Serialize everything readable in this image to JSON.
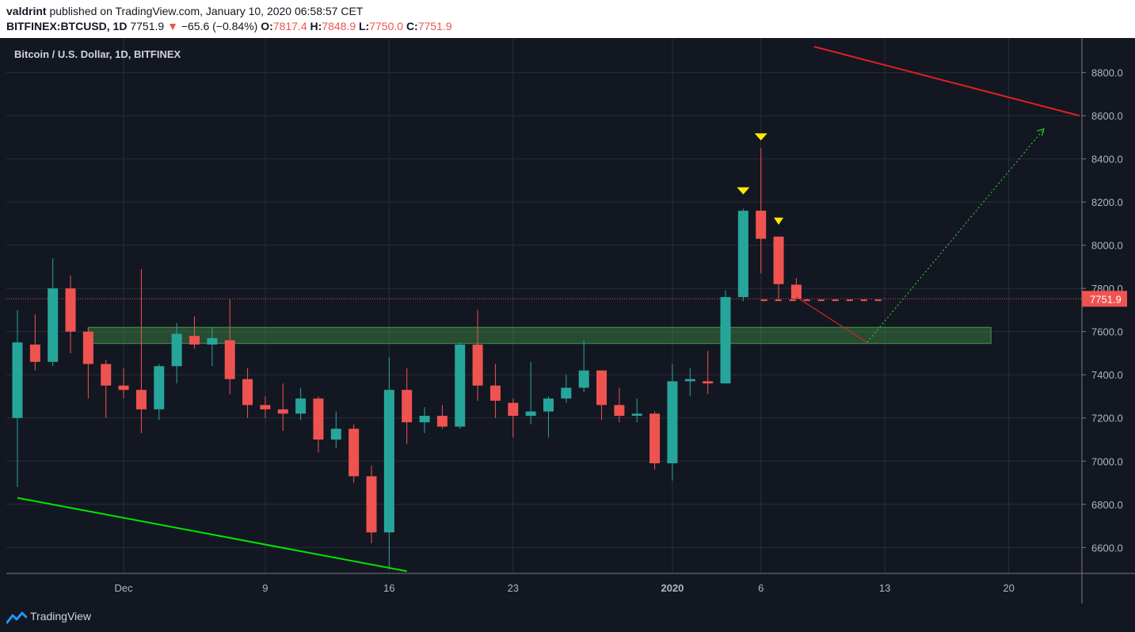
{
  "header": {
    "author": "valdrint",
    "published_text": " published on TradingView.com, January 10, 2020 06:58:57 CET",
    "symbol": "BITFINEX:BTCUSD, 1D",
    "last": "7751.9",
    "change_arrow": "▼",
    "change": "−65.6 (−0.84%)",
    "o_label": "O:",
    "o_value": "7817.4",
    "h_label": "H:",
    "h_value": "7848.9",
    "l_label": "L:",
    "l_value": "7750.0",
    "c_label": "C:",
    "c_value": "7751.9"
  },
  "footer": {
    "brand": "TradingView",
    "logo_icon": "tradingview-logo-icon"
  },
  "colors": {
    "background": "#131722",
    "grid": "#2a2e39",
    "up": "#26a69a",
    "down": "#ef5350",
    "text": "#b2b5be",
    "zone": "#4caf50",
    "trend_green": "#00e600",
    "trend_red": "#e02020",
    "marker": "#ffeb00"
  },
  "chart_data": {
    "type": "candlestick",
    "title": "Bitcoin / U.S. Dollar, 1D, BITFINEX",
    "y_range": [
      6480,
      8960
    ],
    "y_ticks": [
      6600,
      6800,
      7000,
      7200,
      7400,
      7600,
      7800,
      8000,
      8200,
      8400,
      8600,
      8800
    ],
    "y_tick_labels": [
      "6600.0",
      "6800.0",
      "7000.0",
      "7200.0",
      "7400.0",
      "7600.0",
      "7800.0",
      "8000.0",
      "8200.0",
      "8400.0",
      "8600.0",
      "8800.0"
    ],
    "x_range": [
      "2019-11-25",
      "2020-01-24"
    ],
    "x_ticks": [
      {
        "date": "2019-12-01",
        "label": "Dec"
      },
      {
        "date": "2019-12-09",
        "label": "9"
      },
      {
        "date": "2019-12-16",
        "label": "16"
      },
      {
        "date": "2019-12-23",
        "label": "23"
      },
      {
        "date": "2020-01-01",
        "label": "2020"
      },
      {
        "date": "2020-01-06",
        "label": "6"
      },
      {
        "date": "2020-01-13",
        "label": "13"
      },
      {
        "date": "2020-01-20",
        "label": "20"
      }
    ],
    "candles": [
      {
        "date": "2019-11-25",
        "o": 7200,
        "h": 7700,
        "l": 6880,
        "c": 7550
      },
      {
        "date": "2019-11-26",
        "o": 7540,
        "h": 7680,
        "l": 7420,
        "c": 7460
      },
      {
        "date": "2019-11-27",
        "o": 7460,
        "h": 7940,
        "l": 7440,
        "c": 7800
      },
      {
        "date": "2019-11-28",
        "o": 7800,
        "h": 7860,
        "l": 7500,
        "c": 7600
      },
      {
        "date": "2019-11-29",
        "o": 7600,
        "h": 7620,
        "l": 7290,
        "c": 7450
      },
      {
        "date": "2019-11-30",
        "o": 7450,
        "h": 7470,
        "l": 7200,
        "c": 7350
      },
      {
        "date": "2019-12-01",
        "o": 7350,
        "h": 7430,
        "l": 7290,
        "c": 7330
      },
      {
        "date": "2019-12-02",
        "o": 7330,
        "h": 7890,
        "l": 7130,
        "c": 7240
      },
      {
        "date": "2019-12-03",
        "o": 7240,
        "h": 7450,
        "l": 7190,
        "c": 7440
      },
      {
        "date": "2019-12-04",
        "o": 7440,
        "h": 7640,
        "l": 7360,
        "c": 7590
      },
      {
        "date": "2019-12-05",
        "o": 7580,
        "h": 7670,
        "l": 7520,
        "c": 7540
      },
      {
        "date": "2019-12-06",
        "o": 7540,
        "h": 7620,
        "l": 7440,
        "c": 7570
      },
      {
        "date": "2019-12-07",
        "o": 7560,
        "h": 7750,
        "l": 7310,
        "c": 7380
      },
      {
        "date": "2019-12-08",
        "o": 7380,
        "h": 7430,
        "l": 7200,
        "c": 7260
      },
      {
        "date": "2019-12-09",
        "o": 7260,
        "h": 7300,
        "l": 7200,
        "c": 7240
      },
      {
        "date": "2019-12-10",
        "o": 7240,
        "h": 7360,
        "l": 7140,
        "c": 7220
      },
      {
        "date": "2019-12-11",
        "o": 7220,
        "h": 7340,
        "l": 7190,
        "c": 7290
      },
      {
        "date": "2019-12-12",
        "o": 7290,
        "h": 7300,
        "l": 7040,
        "c": 7100
      },
      {
        "date": "2019-12-13",
        "o": 7100,
        "h": 7230,
        "l": 7060,
        "c": 7150
      },
      {
        "date": "2019-12-14",
        "o": 7150,
        "h": 7170,
        "l": 6900,
        "c": 6930
      },
      {
        "date": "2019-12-15",
        "o": 6930,
        "h": 6980,
        "l": 6620,
        "c": 6670
      },
      {
        "date": "2019-12-16",
        "o": 6670,
        "h": 7480,
        "l": 6500,
        "c": 7330
      },
      {
        "date": "2019-12-17",
        "o": 7330,
        "h": 7430,
        "l": 7080,
        "c": 7180
      },
      {
        "date": "2019-12-18",
        "o": 7180,
        "h": 7250,
        "l": 7130,
        "c": 7210
      },
      {
        "date": "2019-12-19",
        "o": 7210,
        "h": 7260,
        "l": 7150,
        "c": 7160
      },
      {
        "date": "2019-12-20",
        "o": 7160,
        "h": 7550,
        "l": 7150,
        "c": 7540
      },
      {
        "date": "2019-12-21",
        "o": 7540,
        "h": 7700,
        "l": 7280,
        "c": 7350
      },
      {
        "date": "2019-12-22",
        "o": 7350,
        "h": 7450,
        "l": 7200,
        "c": 7280
      },
      {
        "date": "2019-12-23",
        "o": 7270,
        "h": 7290,
        "l": 7110,
        "c": 7210
      },
      {
        "date": "2019-12-24",
        "o": 7210,
        "h": 7460,
        "l": 7170,
        "c": 7230
      },
      {
        "date": "2019-12-25",
        "o": 7230,
        "h": 7300,
        "l": 7110,
        "c": 7290
      },
      {
        "date": "2019-12-26",
        "o": 7290,
        "h": 7400,
        "l": 7270,
        "c": 7340
      },
      {
        "date": "2019-12-27",
        "o": 7340,
        "h": 7560,
        "l": 7320,
        "c": 7420
      },
      {
        "date": "2019-12-28",
        "o": 7420,
        "h": 7420,
        "l": 7190,
        "c": 7260
      },
      {
        "date": "2019-12-29",
        "o": 7260,
        "h": 7340,
        "l": 7180,
        "c": 7210
      },
      {
        "date": "2019-12-30",
        "o": 7210,
        "h": 7290,
        "l": 7180,
        "c": 7220
      },
      {
        "date": "2019-12-31",
        "o": 7220,
        "h": 7230,
        "l": 6960,
        "c": 6990
      },
      {
        "date": "2020-01-01",
        "o": 6990,
        "h": 7450,
        "l": 6910,
        "c": 7370
      },
      {
        "date": "2020-01-02",
        "o": 7370,
        "h": 7430,
        "l": 7300,
        "c": 7380
      },
      {
        "date": "2020-01-03",
        "o": 7370,
        "h": 7510,
        "l": 7310,
        "c": 7360
      },
      {
        "date": "2020-01-04",
        "o": 7360,
        "h": 7790,
        "l": 7360,
        "c": 7760
      },
      {
        "date": "2020-01-05",
        "o": 7760,
        "h": 8170,
        "l": 7740,
        "c": 8160
      },
      {
        "date": "2020-01-06",
        "o": 8160,
        "h": 8450,
        "l": 7870,
        "c": 8030
      },
      {
        "date": "2020-01-07",
        "o": 8040,
        "h": 8040,
        "l": 7750,
        "c": 7820
      },
      {
        "date": "2020-01-08",
        "o": 7817.4,
        "h": 7848.9,
        "l": 7750.0,
        "c": 7751.9
      }
    ],
    "current_price": 7751.9,
    "current_price_label": "7751.9",
    "support_zone": {
      "start": "2019-11-29",
      "end": "2020-01-19",
      "top": 7620,
      "bottom": 7545
    },
    "trendlines": [
      {
        "color": "green",
        "points": [
          [
            "2019-11-25",
            6830
          ],
          [
            "2019-12-17",
            6490
          ]
        ]
      },
      {
        "color": "red",
        "points": [
          [
            "2020-01-09",
            8920
          ],
          [
            "2020-01-24",
            8600
          ]
        ]
      }
    ],
    "projection": {
      "down_leg": [
        [
          "2020-01-08",
          7760
        ],
        [
          "2020-01-12",
          7550
        ]
      ],
      "up_leg": [
        [
          "2020-01-12",
          7550
        ],
        [
          "2020-01-22",
          8540
        ]
      ],
      "dash_levels": [
        {
          "from": "2020-01-06",
          "to": "2020-01-13",
          "value": 7745
        }
      ]
    },
    "markers": [
      {
        "date": "2020-01-05",
        "value": 8250
      },
      {
        "date": "2020-01-06",
        "value": 8500
      },
      {
        "date": "2020-01-07",
        "value": 8110
      }
    ]
  }
}
